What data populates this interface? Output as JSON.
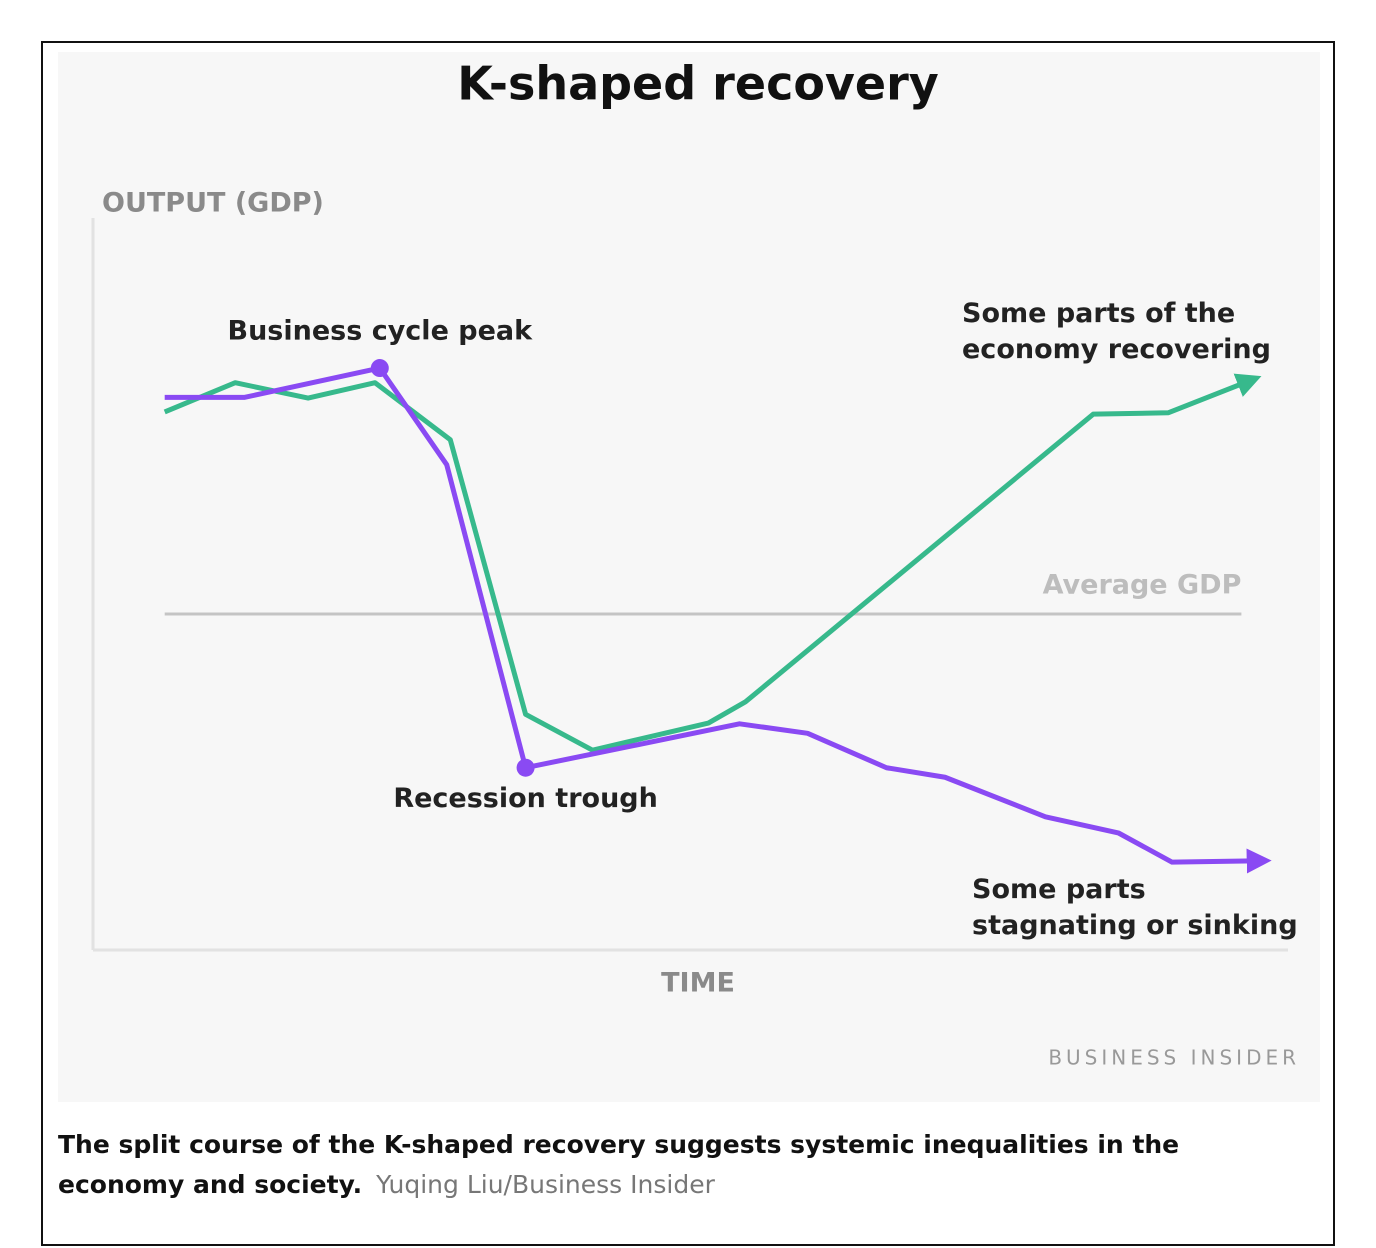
{
  "chart_data": {
    "type": "line",
    "title": "K-shaped recovery",
    "y_label": "OUTPUT (GDP)",
    "x_label": "TIME",
    "xlim": [
      0,
      100
    ],
    "ylim": [
      0,
      100
    ],
    "grid": false,
    "series": [
      {
        "name": "Some parts of the economy recovering",
        "color": "#37b98c",
        "x": [
          6.0,
          11.9,
          18.0,
          23.6,
          29.9,
          36.2,
          41.8,
          51.5,
          54.6,
          83.7,
          90.0,
          97.0
        ],
        "values": [
          73.5,
          77.5,
          75.4,
          77.5,
          69.7,
          32.2,
          27.3,
          31.0,
          33.9,
          73.2,
          73.4,
          77.9
        ]
      },
      {
        "name": "Some parts stagnating or sinking",
        "color": "#8a4af3",
        "x": [
          6.0,
          12.7,
          24.0,
          29.6,
          36.2,
          54.1,
          59.8,
          66.4,
          71.3,
          79.7,
          85.8,
          90.3,
          97.8
        ],
        "values": [
          75.5,
          75.5,
          79.5,
          66.3,
          24.9,
          30.9,
          29.6,
          24.9,
          23.6,
          18.2,
          16.0,
          12.0,
          12.2
        ]
      }
    ],
    "reference_line": {
      "label": "Average GDP",
      "value": 45.9,
      "xlim": [
        6.0,
        96.1
      ]
    },
    "annotations": [
      {
        "text": "Business cycle peak",
        "x": 24.0,
        "y": 79.5
      },
      {
        "text": "Recession trough",
        "x": 36.2,
        "y": 24.9
      }
    ],
    "source": "BUSINESS INSIDER"
  },
  "caption": {
    "text": "The split course of the K-shaped recovery suggests systemic inequalities in the economy and society.",
    "credit": "Yuqing Liu/Business Insider"
  }
}
